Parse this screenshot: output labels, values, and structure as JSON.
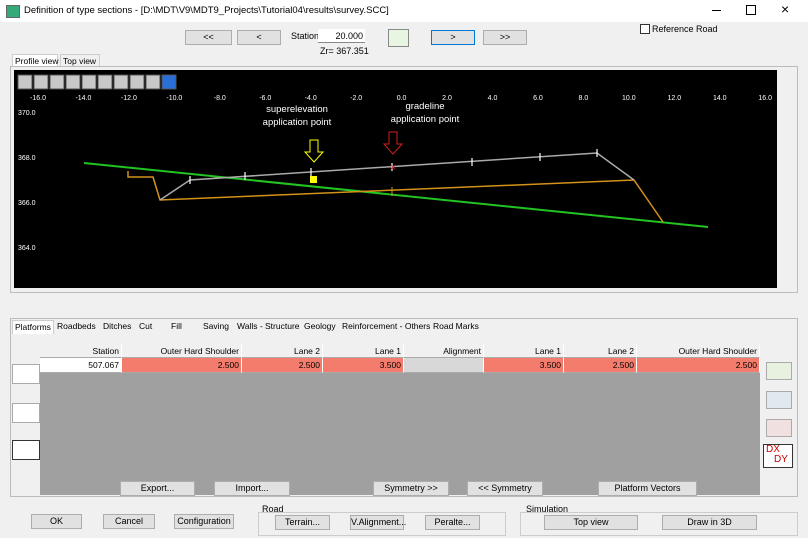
{
  "window": {
    "title": "Definition of type sections - [D:\\MDT\\V9\\MDT9_Projects\\Tutorial04\\results\\survey.SCC]"
  },
  "toolbar": {
    "prev_fast": "<<",
    "prev": "<",
    "station_label": "Station",
    "station": "20.000",
    "zr": "Zr= 367.351",
    "next": ">",
    "next_fast": ">>",
    "reference_road": "Reference Road"
  },
  "view_tabs": [
    "Profile view",
    "Top view"
  ],
  "profile": {
    "x_ticks": [
      "-16.0",
      "-14.0",
      "-12.0",
      "-10.0",
      "-8.0",
      "-6.0",
      "-4.0",
      "-2.0",
      "0.0",
      "2.0",
      "4.0",
      "6.0",
      "8.0",
      "10.0",
      "12.0",
      "14.0",
      "16.0"
    ],
    "y_ticks": [
      "370.0",
      "368.0",
      "366.0",
      "364.0"
    ],
    "annotations": [
      {
        "lines": [
          "superelevation",
          "application point"
        ]
      },
      {
        "lines": [
          "gradeline",
          "application point"
        ]
      }
    ]
  },
  "tabs": [
    "Platforms",
    "Roadbeds",
    "Ditches",
    "Cut",
    "Fill",
    "Saving",
    "Walls - Structure",
    "Geology",
    "Reinforcement - Others",
    "Road Marks"
  ],
  "table": {
    "columns": [
      "Station",
      "Outer Hard Shoulder",
      "Lane 2",
      "Lane 1",
      "Alignment",
      "Lane 1",
      "Lane 2",
      "Outer Hard Shoulder"
    ],
    "rows": [
      [
        "507.067",
        "2.500",
        "2.500",
        "3.500",
        null,
        "3.500",
        "2.500",
        "2.500"
      ]
    ]
  },
  "side_icon": [
    "DX",
    "DY"
  ],
  "table_buttons": [
    "Export...",
    "Import...",
    "Symmetry >>",
    "<< Symmetry",
    "Platform Vectors"
  ],
  "footer": {
    "ok": "OK",
    "cancel": "Cancel",
    "configuration": "Configuration",
    "road_group": "Road",
    "road_buttons": [
      "Terrain...",
      "V.Alignment...",
      "Peralte..."
    ],
    "simulation_group": "Simulation",
    "simulation_buttons": [
      "Top view",
      "Draw in 3D"
    ]
  }
}
